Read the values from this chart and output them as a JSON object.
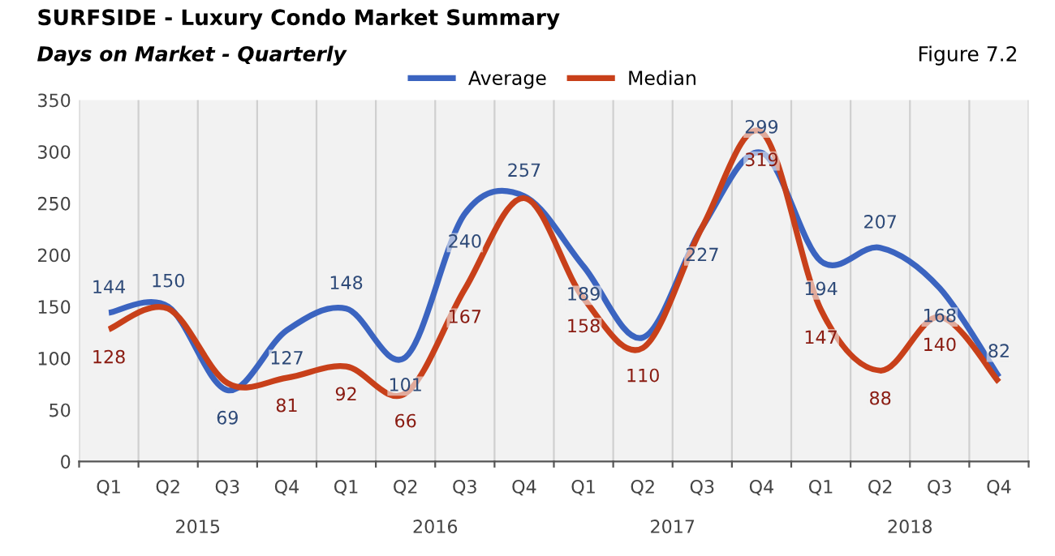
{
  "chart_data": {
    "type": "line",
    "title": "SURFSIDE - Luxury Condo Market Summary",
    "subtitle": "Days on Market - Quarterly",
    "categories": [
      "Q1",
      "Q2",
      "Q3",
      "Q4",
      "Q1",
      "Q2",
      "Q3",
      "Q4",
      "Q1",
      "Q2",
      "Q3",
      "Q4",
      "Q1",
      "Q2",
      "Q3",
      "Q4"
    ],
    "annotations": [
      "2015",
      "2016",
      "2017",
      "2018",
      "Figure 7.2"
    ],
    "series": [
      {
        "name": "Average",
        "color": "#3b64c0",
        "values": [
          144,
          150,
          69,
          127,
          148,
          101,
          240,
          257,
          189,
          120,
          227,
          299,
          194,
          207,
          168,
          82
        ],
        "value_labels": [
          "144",
          "150",
          "69",
          "127",
          "148",
          "101",
          "240",
          "257",
          "189",
          null,
          "227",
          "299",
          "194",
          "207",
          "168",
          "82"
        ]
      },
      {
        "name": "Median",
        "color": "#c8401a",
        "values": [
          128,
          148,
          76,
          81,
          92,
          66,
          167,
          255,
          158,
          110,
          227,
          319,
          147,
          88,
          140,
          77
        ],
        "value_labels": [
          "128",
          null,
          null,
          "81",
          "92",
          "66",
          "167",
          null,
          "158",
          "110",
          null,
          "319",
          "147",
          "88",
          "140",
          null
        ]
      }
    ],
    "ylim": [
      0,
      350
    ],
    "yticks": [
      0,
      50,
      100,
      150,
      200,
      250,
      300,
      350
    ],
    "grid": "x",
    "legend": "top",
    "marker": "none",
    "line_style": "solid"
  }
}
